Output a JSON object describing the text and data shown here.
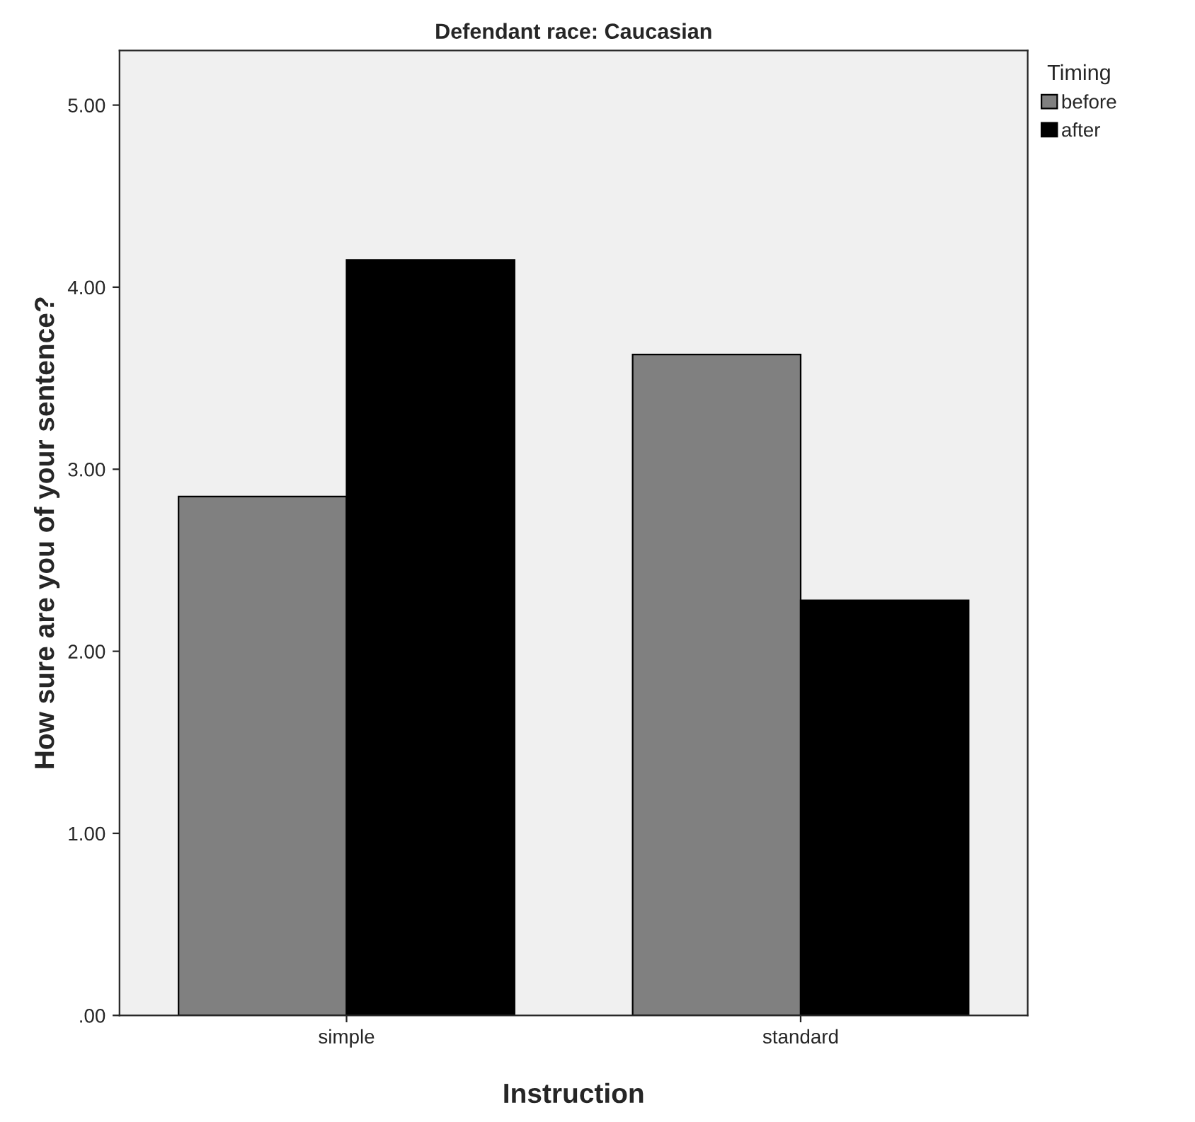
{
  "chart_data": {
    "type": "bar",
    "title": "Defendant race: Caucasian",
    "xlabel": "Instruction",
    "ylabel": "How sure are you of your sentence?",
    "legend_title": "Timing",
    "categories": [
      "simple",
      "standard"
    ],
    "series": [
      {
        "name": "before",
        "color": "#808080",
        "values": [
          2.85,
          3.63
        ]
      },
      {
        "name": "after",
        "color": "#000000",
        "values": [
          4.15,
          2.28
        ]
      }
    ],
    "ylim": [
      0,
      5.3
    ],
    "yticks": [
      {
        "value": 0,
        "label": ".00"
      },
      {
        "value": 1,
        "label": "1.00"
      },
      {
        "value": 2,
        "label": "2.00"
      },
      {
        "value": 3,
        "label": "3.00"
      },
      {
        "value": 4,
        "label": "4.00"
      },
      {
        "value": 5,
        "label": "5.00"
      }
    ],
    "legend": "top right",
    "grid": false
  }
}
